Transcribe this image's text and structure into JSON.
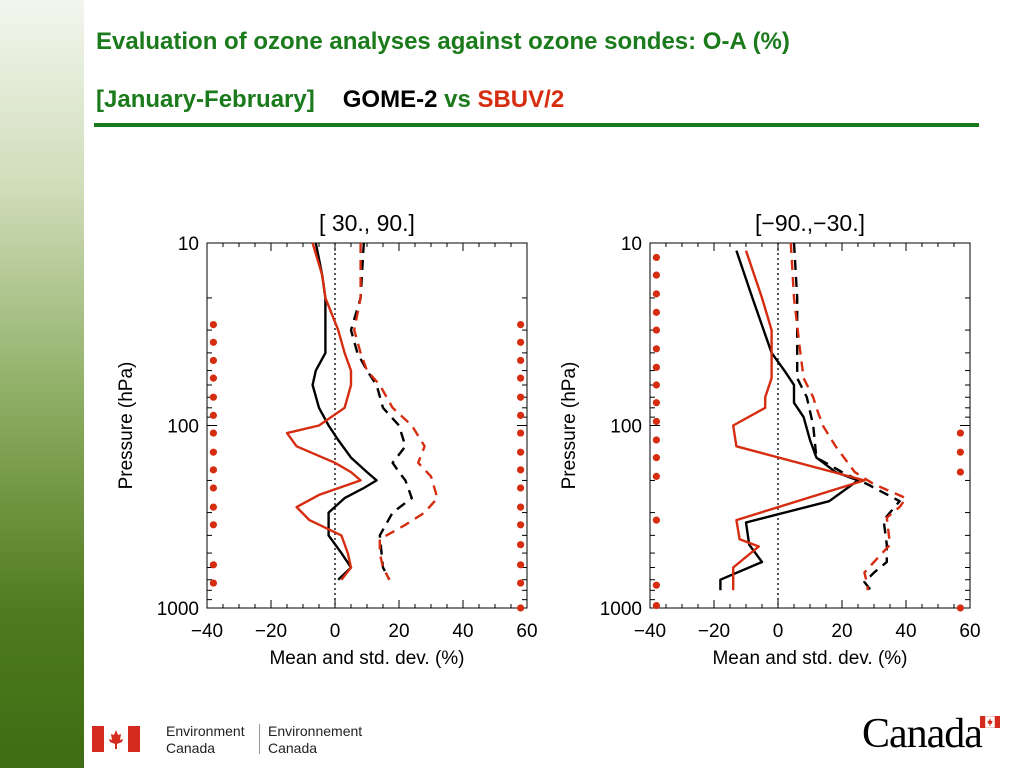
{
  "slide": {
    "title_line1": "Evaluation of ozone analyses against ozone sondes: O-A (%)",
    "title_period": "[January-February]",
    "title_gome": "GOME-2",
    "title_vs": "vs",
    "title_sbuv": "SBUV/2",
    "accent_color": "#1b7a1b",
    "sbuv_color": "#d62c10"
  },
  "footer": {
    "dept_en_line1": "Environment",
    "dept_en_line2": "Canada",
    "dept_fr_line1": "Environnement",
    "dept_fr_line2": "Canada",
    "wordmark": "Canada"
  },
  "chart_data": [
    {
      "type": "line",
      "title": "[ 30., 90.]",
      "xlabel": "Mean and std. dev. (%)",
      "ylabel": "Pressure (hPa)",
      "y_scale": "log",
      "y_reversed": true,
      "xlim": [
        -40,
        60
      ],
      "ylim": [
        10,
        1000
      ],
      "x_ticks": [
        "−40",
        "−20",
        "0",
        "20",
        "40",
        "60"
      ],
      "y_ticks": [
        "10",
        "100",
        "1000"
      ],
      "series": [
        {
          "color": "#000000",
          "style": "solid",
          "points": [
            [
              -6,
              10
            ],
            [
              -4,
              15
            ],
            [
              -3,
              20
            ],
            [
              -3,
              30
            ],
            [
              -3,
              40
            ],
            [
              -6,
              50
            ],
            [
              -7,
              60
            ],
            [
              -5,
              80
            ],
            [
              -2,
              100
            ],
            [
              1,
              120
            ],
            [
              5,
              150
            ],
            [
              10,
              180
            ],
            [
              13,
              200
            ],
            [
              9,
              220
            ],
            [
              3,
              250
            ],
            [
              -2,
              300
            ],
            [
              -2,
              400
            ],
            [
              2,
              500
            ],
            [
              5,
              600
            ],
            [
              1,
              700
            ]
          ]
        },
        {
          "color": "#000000",
          "style": "dashed",
          "points": [
            [
              9,
              10
            ],
            [
              8,
              20
            ],
            [
              5,
              30
            ],
            [
              7,
              40
            ],
            [
              10,
              50
            ],
            [
              13,
              60
            ],
            [
              15,
              80
            ],
            [
              20,
              100
            ],
            [
              22,
              130
            ],
            [
              18,
              160
            ],
            [
              20,
              180
            ],
            [
              22,
              200
            ],
            [
              24,
              250
            ],
            [
              18,
              300
            ],
            [
              14,
              400
            ],
            [
              15,
              600
            ],
            [
              17,
              700
            ]
          ]
        },
        {
          "color": "#d62c10",
          "style": "solid",
          "points": [
            [
              -7,
              10
            ],
            [
              -4,
              15
            ],
            [
              -3,
              20
            ],
            [
              1,
              30
            ],
            [
              3,
              40
            ],
            [
              5,
              50
            ],
            [
              5,
              60
            ],
            [
              3,
              80
            ],
            [
              -5,
              100
            ],
            [
              -15,
              110
            ],
            [
              -12,
              130
            ],
            [
              0,
              160
            ],
            [
              5,
              180
            ],
            [
              8,
              200
            ],
            [
              -5,
              240
            ],
            [
              -12,
              280
            ],
            [
              -8,
              330
            ],
            [
              2,
              400
            ],
            [
              4,
              500
            ],
            [
              5,
              600
            ],
            [
              2,
              700
            ]
          ]
        },
        {
          "color": "#d62c10",
          "style": "dashed",
          "points": [
            [
              8,
              10
            ],
            [
              8,
              20
            ],
            [
              6,
              30
            ],
            [
              8,
              40
            ],
            [
              10,
              50
            ],
            [
              14,
              60
            ],
            [
              18,
              80
            ],
            [
              24,
              100
            ],
            [
              28,
              130
            ],
            [
              26,
              160
            ],
            [
              30,
              190
            ],
            [
              32,
              250
            ],
            [
              28,
              300
            ],
            [
              22,
              350
            ],
            [
              14,
              420
            ],
            [
              14,
              500
            ],
            [
              15,
              600
            ],
            [
              17,
              700
            ]
          ]
        },
        {
          "color": "#d62c10",
          "style": "markers",
          "points": [
            [
              -38,
              28
            ],
            [
              -38,
              35
            ],
            [
              -38,
              44
            ],
            [
              -38,
              55
            ],
            [
              -38,
              70
            ],
            [
              -38,
              88
            ],
            [
              -38,
              110
            ],
            [
              -38,
              140
            ],
            [
              -38,
              175
            ],
            [
              -38,
              220
            ],
            [
              -38,
              280
            ],
            [
              -38,
              350
            ],
            [
              -38,
              580
            ],
            [
              -38,
              730
            ],
            [
              58,
              28
            ],
            [
              58,
              35
            ],
            [
              58,
              44
            ],
            [
              58,
              55
            ],
            [
              58,
              70
            ],
            [
              58,
              88
            ],
            [
              58,
              110
            ],
            [
              58,
              140
            ],
            [
              58,
              175
            ],
            [
              58,
              220
            ],
            [
              58,
              280
            ],
            [
              58,
              350
            ],
            [
              58,
              450
            ],
            [
              58,
              580
            ],
            [
              58,
              730
            ],
            [
              58,
              1000
            ]
          ]
        }
      ]
    },
    {
      "type": "line",
      "title": "[−90.,−30.]",
      "xlabel": "Mean and std. dev. (%)",
      "ylabel": "Pressure (hPa)",
      "y_scale": "log",
      "y_reversed": true,
      "xlim": [
        -40,
        60
      ],
      "ylim": [
        10,
        1000
      ],
      "x_ticks": [
        "−40",
        "−20",
        "0",
        "20",
        "40",
        "60"
      ],
      "y_ticks": [
        "10",
        "100",
        "1000"
      ],
      "series": [
        {
          "color": "#000000",
          "style": "solid",
          "points": [
            [
              -13,
              11
            ],
            [
              -8,
              20
            ],
            [
              -2,
              40
            ],
            [
              2,
              50
            ],
            [
              5,
              60
            ],
            [
              5,
              75
            ],
            [
              8,
              90
            ],
            [
              10,
              120
            ],
            [
              12,
              150
            ],
            [
              18,
              180
            ],
            [
              25,
              200
            ],
            [
              16,
              260
            ],
            [
              -10,
              340
            ],
            [
              -9,
              450
            ],
            [
              -5,
              560
            ],
            [
              -18,
              700
            ],
            [
              -18,
              800
            ]
          ]
        },
        {
          "color": "#000000",
          "style": "dashed",
          "points": [
            [
              5,
              10
            ],
            [
              6,
              20
            ],
            [
              6,
              40
            ],
            [
              6,
              55
            ],
            [
              9,
              70
            ],
            [
              11,
              100
            ],
            [
              12,
              150
            ],
            [
              20,
              180
            ],
            [
              28,
              210
            ],
            [
              38,
              260
            ],
            [
              33,
              330
            ],
            [
              34,
              450
            ],
            [
              34,
              560
            ],
            [
              30,
              640
            ],
            [
              27,
              720
            ],
            [
              29,
              800
            ]
          ]
        },
        {
          "color": "#d62c10",
          "style": "solid",
          "points": [
            [
              -10,
              11
            ],
            [
              -5,
              20
            ],
            [
              -2,
              30
            ],
            [
              -2,
              40
            ],
            [
              -2,
              55
            ],
            [
              -4,
              70
            ],
            [
              -4,
              80
            ],
            [
              -14,
              100
            ],
            [
              -13,
              130
            ],
            [
              27,
              200
            ],
            [
              -13,
              330
            ],
            [
              -12,
              420
            ],
            [
              -6,
              460
            ],
            [
              -14,
              600
            ],
            [
              -14,
              800
            ]
          ]
        },
        {
          "color": "#d62c10",
          "style": "dashed",
          "points": [
            [
              4,
              10
            ],
            [
              5,
              20
            ],
            [
              7,
              40
            ],
            [
              8,
              55
            ],
            [
              11,
              70
            ],
            [
              12,
              80
            ],
            [
              14,
              100
            ],
            [
              18,
              130
            ],
            [
              24,
              180
            ],
            [
              30,
              210
            ],
            [
              40,
              250
            ],
            [
              38,
              280
            ],
            [
              34,
              320
            ],
            [
              35,
              450
            ],
            [
              30,
              560
            ],
            [
              27,
              640
            ],
            [
              28,
              750
            ],
            [
              28,
              800
            ]
          ]
        },
        {
          "color": "#d62c10",
          "style": "markers",
          "points": [
            [
              -38,
              12
            ],
            [
              -38,
              15
            ],
            [
              -38,
              19
            ],
            [
              -38,
              24
            ],
            [
              -38,
              30
            ],
            [
              -38,
              38
            ],
            [
              -38,
              48
            ],
            [
              -38,
              60
            ],
            [
              -38,
              75
            ],
            [
              -38,
              95
            ],
            [
              -38,
              120
            ],
            [
              -38,
              150
            ],
            [
              -38,
              190
            ],
            [
              -38,
              330
            ],
            [
              -38,
              750
            ],
            [
              -38,
              970
            ],
            [
              57,
              110
            ],
            [
              57,
              140
            ],
            [
              57,
              180
            ],
            [
              57,
              1000
            ]
          ]
        }
      ]
    }
  ]
}
